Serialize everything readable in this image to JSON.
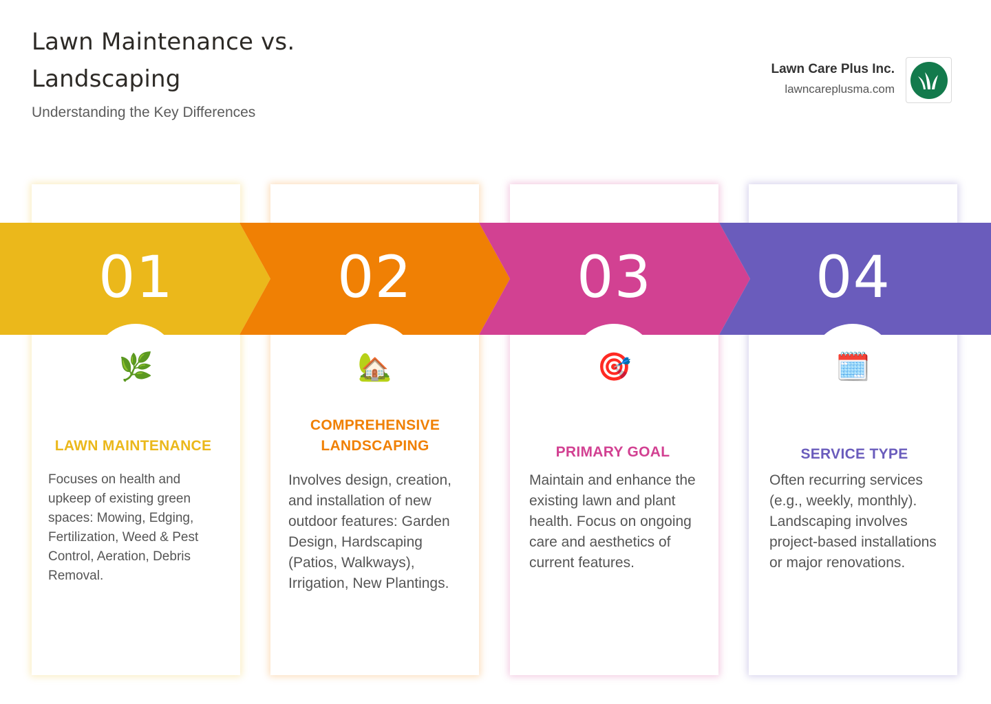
{
  "header": {
    "title": "Lawn Maintenance vs. Landscaping",
    "subtitle": "Understanding the Key Differences"
  },
  "brand": {
    "name": "Lawn Care Plus Inc.",
    "url": "lawncareplusma.com",
    "logo_icon": "grass-icon",
    "logo_color": "#137a4c"
  },
  "steps": [
    {
      "number": "01",
      "color": "#ebb81b",
      "icon": "🌿",
      "icon_name": "herb-icon",
      "title": "LAWN MAINTENANCE",
      "text": "Focuses on health and upkeep of existing green spaces: Mowing, Edging, Fertilization, Weed & Pest Control, Aeration, Debris Removal."
    },
    {
      "number": "02",
      "color": "#f08004",
      "icon": "🏡",
      "icon_name": "house-with-garden-icon",
      "title": "COMPREHENSIVE LANDSCAPING",
      "text": "Involves design, creation, and installation of new outdoor features: Garden Design, Hardscaping (Patios, Walkways), Irrigation, New Plantings."
    },
    {
      "number": "03",
      "color": "#d24192",
      "icon": "🎯",
      "icon_name": "target-icon",
      "title": "PRIMARY GOAL",
      "text": "Maintain and enhance the existing lawn and plant health. Focus on ongoing care and aesthetics of current features."
    },
    {
      "number": "04",
      "color": "#6a5cbc",
      "icon": "🗓️",
      "icon_name": "calendar-icon",
      "title": "SERVICE TYPE",
      "text": "Often recurring services (e.g., weekly, monthly). Landscaping involves project-based installations or major renovations."
    }
  ]
}
